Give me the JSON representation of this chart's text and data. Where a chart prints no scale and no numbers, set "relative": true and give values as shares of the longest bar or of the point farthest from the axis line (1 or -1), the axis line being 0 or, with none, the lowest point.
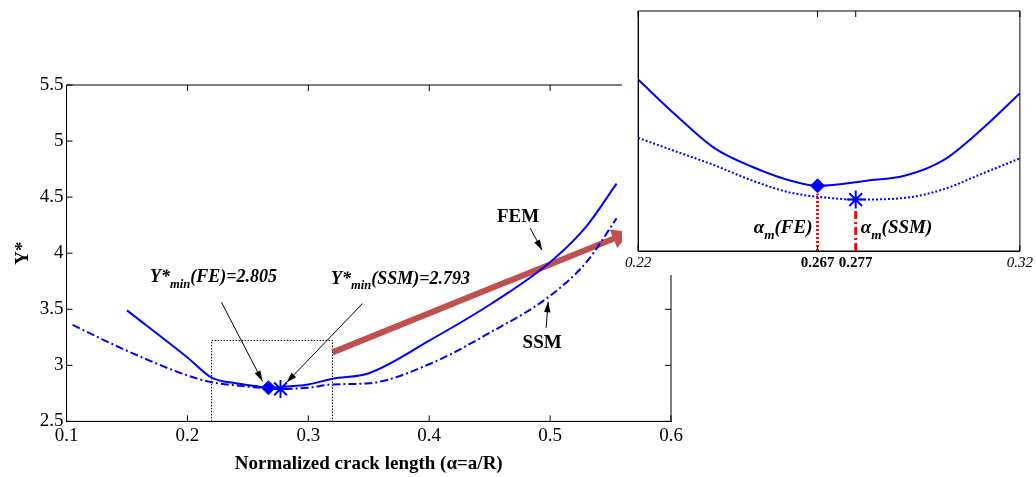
{
  "chart_data": [
    {
      "type": "line",
      "xlabel": "Normalized crack length (α=a/R)",
      "ylabel": "Y*",
      "xlim": [
        0.1,
        0.6
      ],
      "ylim": [
        2.5,
        5.5
      ],
      "xticks": [
        0.1,
        0.2,
        0.3,
        0.4,
        0.5,
        0.6
      ],
      "yticks": [
        2.5,
        3,
        3.5,
        4,
        4.5,
        5,
        5.5
      ],
      "grid": false,
      "legend": false,
      "series": [
        {
          "name": "FEM",
          "color": "#0000ff",
          "line_style": "solid",
          "marker": "none",
          "x": [
            0.15,
            0.2,
            0.22,
            0.24,
            0.26,
            0.267,
            0.28,
            0.3,
            0.32,
            0.35,
            0.4,
            0.45,
            0.5,
            0.53,
            0.555
          ],
          "values": [
            3.49,
            3.07,
            2.89,
            2.84,
            2.81,
            2.8,
            2.81,
            2.83,
            2.88,
            2.93,
            3.22,
            3.54,
            3.92,
            4.24,
            4.62
          ]
        },
        {
          "name": "SSM",
          "color": "#0000ff",
          "line_style": "dashed",
          "marker": "none",
          "x": [
            0.105,
            0.15,
            0.2,
            0.22,
            0.25,
            0.277,
            0.3,
            0.32,
            0.35,
            0.4,
            0.45,
            0.5,
            0.53,
            0.555
          ],
          "values": [
            3.36,
            3.13,
            2.91,
            2.85,
            2.81,
            2.79,
            2.8,
            2.83,
            2.84,
            3.01,
            3.29,
            3.62,
            3.92,
            4.31
          ]
        },
        {
          "type": "scatter",
          "color": "#0000ff",
          "marker": "diamond",
          "x": [
            0.267
          ],
          "values": [
            2.8
          ]
        },
        {
          "type": "scatter",
          "color": "#0000ff",
          "marker": "cross",
          "x": [
            0.277
          ],
          "values": [
            2.79
          ]
        }
      ],
      "annotations": [
        {
          "text": "Y*$_{min}$(FE)=2.805",
          "x": 0.267,
          "y": 2.805
        },
        {
          "text": "Y*$_{min}$(SSM)=2.793",
          "x": 0.277,
          "y": 2.793
        }
      ]
    },
    {
      "type": "line",
      "relative": true,
      "xlim": [
        0.22,
        0.32
      ],
      "xticks": [
        0.22,
        0.267,
        0.277,
        0.32
      ],
      "grid": false,
      "legend": false,
      "series": [
        {
          "color": "#0000ff",
          "line_style": "solid",
          "marker": "none",
          "x": [
            0.22,
            0.23,
            0.24,
            0.25,
            0.26,
            0.267,
            0.28,
            0.29,
            0.3,
            0.31,
            0.32
          ],
          "values": [
            1.0,
            0.79,
            0.6,
            0.49,
            0.41,
            0.38,
            0.41,
            0.44,
            0.53,
            0.71,
            0.92
          ]
        },
        {
          "color": "#0000ff",
          "line_style": "dotted",
          "marker": "none",
          "x": [
            0.22,
            0.23,
            0.24,
            0.25,
            0.26,
            0.27,
            0.277,
            0.29,
            0.3,
            0.31,
            0.32
          ],
          "values": [
            0.66,
            0.58,
            0.5,
            0.41,
            0.34,
            0.31,
            0.3,
            0.31,
            0.36,
            0.45,
            0.54
          ]
        },
        {
          "type": "scatter",
          "color": "#0000ff",
          "marker": "diamond",
          "x": [
            0.267
          ],
          "values": [
            0.38
          ]
        },
        {
          "type": "scatter",
          "color": "#0000ff",
          "marker": "cross",
          "x": [
            0.277
          ],
          "values": [
            0.3
          ]
        }
      ],
      "ref_lines": [
        {
          "axis": "x",
          "value": 0.267,
          "label": "α$_{m}$(FE)",
          "color": "#ff0000",
          "line_style": "dotted"
        },
        {
          "axis": "x",
          "value": 0.277,
          "label": "α$_{m}$(SSM)",
          "color": "#ff0000",
          "line_style": "dashed"
        }
      ]
    }
  ]
}
